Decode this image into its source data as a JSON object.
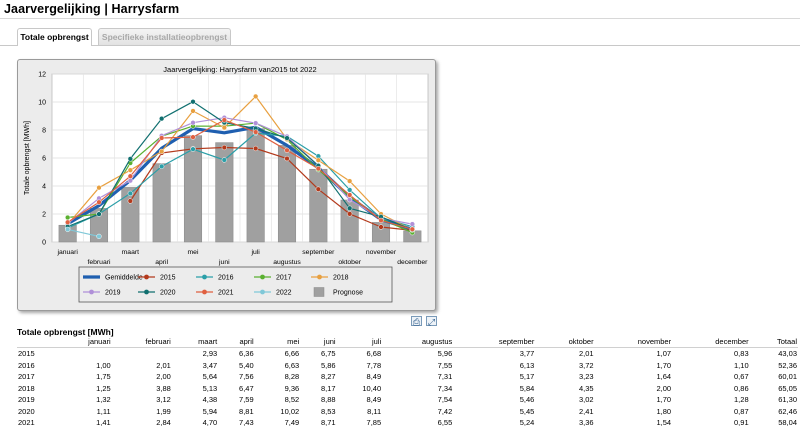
{
  "page": {
    "title": "Jaarvergelijking | Harrysfarm"
  },
  "tabs": [
    {
      "label": "Totale opbrengst",
      "active": true
    },
    {
      "label": "Specifieke installatieopbrengst",
      "active": false
    }
  ],
  "icons": {
    "print": "printer-icon",
    "fullscreen": "expand-icon"
  },
  "chart_data": {
    "type": "line",
    "title": "Jaarvergelijking: Harrysfarm van2015 tot 2022",
    "ylabel": "Totale opbrengst [MWh]",
    "xlabel": "",
    "ylim": [
      0,
      12
    ],
    "yticks": [
      0,
      2,
      4,
      6,
      8,
      10,
      12
    ],
    "grid": true,
    "legend_position": "bottom",
    "categories": [
      "januari",
      "februari",
      "maart",
      "april",
      "mei",
      "juni",
      "juli",
      "augustus",
      "september",
      "oktober",
      "november",
      "december"
    ],
    "bars": {
      "name": "Prognose",
      "color": "#a0a0a0",
      "values": [
        1.2,
        2.4,
        3.9,
        5.6,
        7.6,
        7.1,
        8.1,
        6.9,
        5.2,
        3.0,
        1.4,
        0.8
      ]
    },
    "series": [
      {
        "name": "Gemiddelde",
        "color": "#1f5fb0",
        "values": [
          1.3,
          2.6,
          4.4,
          6.7,
          8.1,
          7.8,
          8.2,
          6.9,
          5.3,
          3.2,
          1.6,
          0.9
        ]
      },
      {
        "name": "2015",
        "color": "#b33a1c",
        "values": [
          null,
          null,
          2.93,
          6.36,
          6.66,
          6.75,
          6.68,
          5.96,
          3.77,
          2.01,
          1.07,
          0.83
        ]
      },
      {
        "name": "2016",
        "color": "#2b9fa8",
        "values": [
          1.0,
          2.01,
          3.47,
          5.4,
          6.63,
          5.86,
          7.78,
          7.55,
          6.13,
          3.72,
          1.7,
          1.1
        ]
      },
      {
        "name": "2017",
        "color": "#5ab030",
        "values": [
          1.75,
          2.0,
          5.64,
          7.56,
          8.28,
          8.27,
          8.49,
          7.31,
          5.17,
          3.23,
          1.64,
          0.67
        ]
      },
      {
        "name": "2018",
        "color": "#e8a040",
        "values": [
          1.25,
          3.88,
          5.13,
          6.47,
          9.36,
          8.17,
          10.4,
          7.34,
          5.84,
          4.35,
          2.0,
          0.86
        ]
      },
      {
        "name": "2019",
        "color": "#b090d8",
        "values": [
          1.32,
          3.12,
          4.38,
          7.59,
          8.52,
          8.88,
          8.49,
          7.54,
          5.46,
          3.02,
          1.7,
          1.28
        ]
      },
      {
        "name": "2020",
        "color": "#117070",
        "values": [
          1.11,
          1.99,
          5.94,
          8.81,
          10.02,
          8.53,
          8.11,
          7.42,
          5.45,
          2.41,
          1.8,
          0.87
        ]
      },
      {
        "name": "2021",
        "color": "#e06040",
        "values": [
          1.41,
          2.84,
          4.7,
          7.43,
          7.49,
          8.71,
          7.85,
          6.55,
          5.24,
          3.36,
          1.54,
          0.91
        ]
      },
      {
        "name": "2022",
        "color": "#80c8d8",
        "values": [
          0.9,
          0.4,
          null,
          null,
          null,
          null,
          null,
          null,
          null,
          null,
          null,
          null
        ]
      }
    ]
  },
  "table": {
    "title": "Totale opbrengst [MWh]",
    "columns": [
      "",
      "januari",
      "februari",
      "maart",
      "april",
      "mei",
      "juni",
      "juli",
      "augustus",
      "september",
      "oktober",
      "november",
      "december",
      "Totaal"
    ],
    "rows": [
      [
        "2015",
        "",
        "",
        "2,93",
        "6,36",
        "6,66",
        "6,75",
        "6,68",
        "5,96",
        "3,77",
        "2,01",
        "1,07",
        "0,83",
        "43,03"
      ],
      [
        "2016",
        "1,00",
        "2,01",
        "3,47",
        "5,40",
        "6,63",
        "5,86",
        "7,78",
        "7,55",
        "6,13",
        "3,72",
        "1,70",
        "1,10",
        "52,36"
      ],
      [
        "2017",
        "1,75",
        "2,00",
        "5,64",
        "7,56",
        "8,28",
        "8,27",
        "8,49",
        "7,31",
        "5,17",
        "3,23",
        "1,64",
        "0,67",
        "60,01"
      ],
      [
        "2018",
        "1,25",
        "3,88",
        "5,13",
        "6,47",
        "9,36",
        "8,17",
        "10,40",
        "7,34",
        "5,84",
        "4,35",
        "2,00",
        "0,86",
        "65,05"
      ],
      [
        "2019",
        "1,32",
        "3,12",
        "4,38",
        "7,59",
        "8,52",
        "8,88",
        "8,49",
        "7,54",
        "5,46",
        "3,02",
        "1,70",
        "1,28",
        "61,30"
      ],
      [
        "2020",
        "1,11",
        "1,99",
        "5,94",
        "8,81",
        "10,02",
        "8,53",
        "8,11",
        "7,42",
        "5,45",
        "2,41",
        "1,80",
        "0,87",
        "62,46"
      ],
      [
        "2021",
        "1,41",
        "2,84",
        "4,70",
        "7,43",
        "7,49",
        "8,71",
        "7,85",
        "6,55",
        "5,24",
        "3,36",
        "1,54",
        "0,91",
        "58,04"
      ]
    ]
  }
}
